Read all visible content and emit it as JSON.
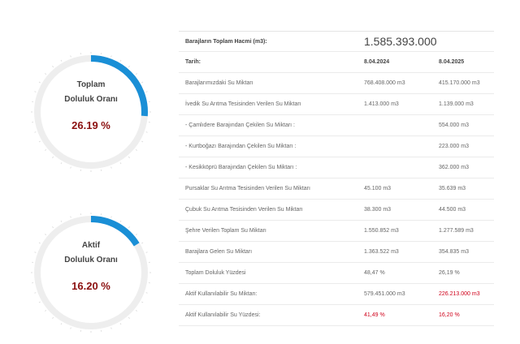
{
  "colors": {
    "accent": "#1a8fd6",
    "track": "#eeeeee",
    "pct_text": "#8b1010",
    "red_value": "#d0021b"
  },
  "gauges": [
    {
      "label_line1": "Toplam",
      "label_line2": "Doluluk Oranı",
      "percent_text": "26.19 %",
      "fill_fraction": 0.2619
    },
    {
      "label_line1": "Aktif",
      "label_line2": "Doluluk Oranı",
      "percent_text": "16.20 %",
      "fill_fraction": 0.162
    }
  ],
  "table": {
    "title_label": "Barajların Toplam Hacmi (m3):",
    "title_value": "1.585.393.000",
    "date_label": "Tarih:",
    "date_1": "8.04.2024",
    "date_2": "8.04.2025",
    "rows": [
      {
        "label": "Barajlarımızdaki Su Miktarı",
        "v1": "768.408.000 m3",
        "v2": "415.170.000 m3"
      },
      {
        "label": "İvedik Su Arıtma Tesisinden Verilen Su Miktarı",
        "v1": "1.413.000 m3",
        "v2": "1.139.000 m3"
      },
      {
        "label": "- Çamlıdere Barajından Çekilen Su Miktarı :",
        "v1": "",
        "v2": "554.000 m3"
      },
      {
        "label": "- Kurtboğazı Barajından Çekilen Su Miktarı :",
        "v1": "",
        "v2": "223.000 m3"
      },
      {
        "label": "- Kesikköprü Barajından Çekilen Su Miktarı :",
        "v1": "",
        "v2": "362.000 m3"
      },
      {
        "label": "Pursaklar Su Arıtma Tesisinden Verilen Su Miktarı",
        "v1": "45.100 m3",
        "v2": "35.639 m3"
      },
      {
        "label": "Çubuk Su Arıtma Tesisinden Verilen Su Miktarı",
        "v1": "38.300 m3",
        "v2": "44.500 m3"
      },
      {
        "label": "Şehre Verilen Toplam Su Miktarı",
        "v1": "1.550.852 m3",
        "v2": "1.277.589 m3"
      },
      {
        "label": "Barajlara Gelen Su Miktarı",
        "v1": "1.363.522 m3",
        "v2": "354.835 m3"
      },
      {
        "label": "Toplam Doluluk Yüzdesi",
        "v1": "48,47 %",
        "v2": "26,19 %"
      },
      {
        "label": "Aktif Kullanılabilir Su Miktarı:",
        "v1": "579.451.000 m3",
        "v2": "226.213.000 m3"
      },
      {
        "label": "Aktif Kullanılabilir Su Yüzdesi:",
        "v1": "41,49 %",
        "v2": "16,20 %"
      }
    ]
  }
}
